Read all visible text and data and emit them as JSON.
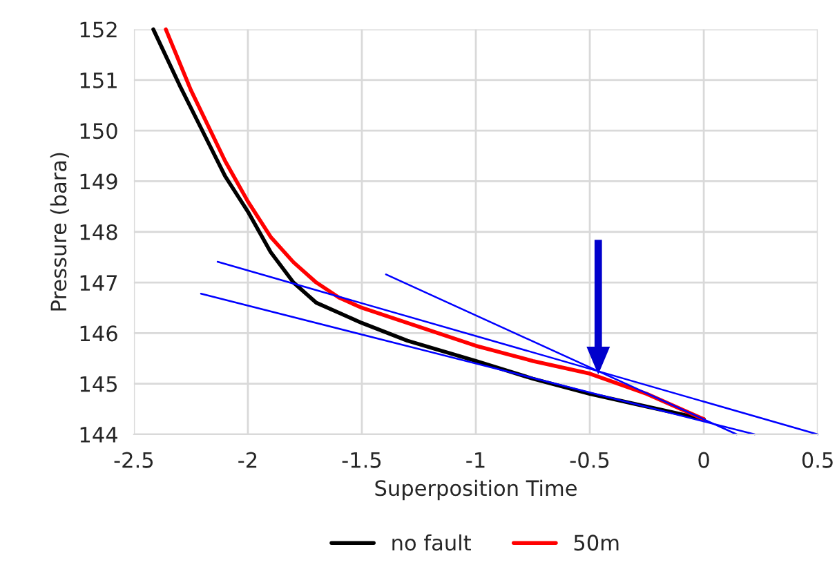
{
  "chart_data": {
    "type": "line",
    "xlabel": "Superposition Time",
    "ylabel": "Pressure (bara)",
    "xlim": [
      -2.5,
      0.5
    ],
    "xticks": [
      -2.5,
      -2,
      -1.5,
      -1,
      -0.5,
      0,
      0.5
    ],
    "ylim": [
      144,
      152
    ],
    "yticks": [
      144,
      145,
      146,
      147,
      148,
      149,
      150,
      151,
      152
    ],
    "grid": true,
    "legend": "bottom",
    "marker": "none",
    "line_style": "solid",
    "series": [
      {
        "name": "no fault",
        "color": "#000000",
        "x": [
          -2.415,
          -2.3,
          -2.2,
          -2.1,
          -2.0,
          -1.9,
          -1.8,
          -1.7,
          -1.6,
          -1.5,
          -1.3,
          -1.0,
          -0.75,
          -0.5,
          -0.25,
          0.0
        ],
        "values": [
          152,
          150.9,
          150.0,
          149.1,
          148.4,
          147.6,
          147.0,
          146.6,
          146.4,
          146.2,
          145.85,
          145.45,
          145.1,
          144.8,
          144.55,
          144.3
        ]
      },
      {
        "name": "50m",
        "color": "#ff0000",
        "x": [
          -2.36,
          -2.25,
          -2.1,
          -2.0,
          -1.9,
          -1.8,
          -1.7,
          -1.6,
          -1.5,
          -1.3,
          -1.0,
          -0.75,
          -0.5,
          -0.25,
          0.0
        ],
        "values": [
          152,
          150.8,
          149.4,
          148.6,
          147.9,
          147.4,
          147.0,
          146.7,
          146.5,
          146.2,
          145.75,
          145.45,
          145.2,
          144.8,
          144.3
        ]
      },
      {
        "color": "#0000ff",
        "x": [
          -2.133,
          0.5
        ],
        "values": [
          147.41,
          144.0
        ]
      },
      {
        "color": "#0000ff",
        "x": [
          -2.206,
          0.224
        ],
        "values": [
          146.78,
          144.0
        ]
      },
      {
        "color": "#0000ff",
        "x": [
          -1.394,
          0.145
        ],
        "values": [
          147.16,
          144.0
        ]
      }
    ]
  }
}
